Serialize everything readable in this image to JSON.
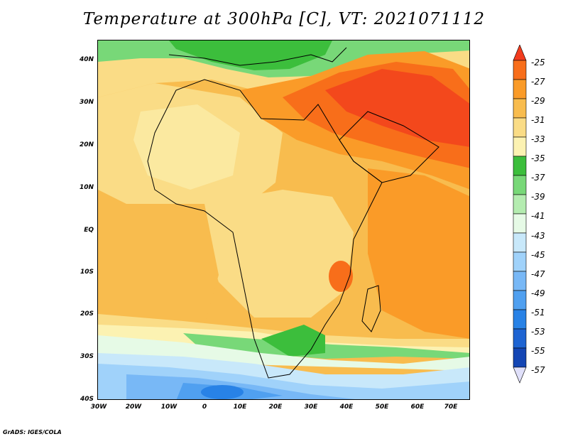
{
  "title": "Temperature at 300hPa [C], VT: 2021071112",
  "footer": "GrADS: IGES/COLA",
  "y_labels": [
    "40N",
    "30N",
    "20N",
    "10N",
    "EQ",
    "10S",
    "20S",
    "30S",
    "40S"
  ],
  "x_labels": [
    "30W",
    "20W",
    "10W",
    "0",
    "10E",
    "20E",
    "30E",
    "40E",
    "50E",
    "60E",
    "70E"
  ],
  "colorbar": {
    "labels": [
      "-25",
      "-27",
      "-29",
      "-31",
      "-33",
      "-35",
      "-37",
      "-39",
      "-41",
      "-43",
      "-45",
      "-47",
      "-49",
      "-51",
      "-53",
      "-55",
      "-57"
    ],
    "colors": [
      "#f23c1e",
      "#f86e1a",
      "#fa9b28",
      "#f8bc4e",
      "#fadc86",
      "#fcf2b2",
      "#3cbe3c",
      "#78d878",
      "#b4ecb0",
      "#e6fae6",
      "#c8e8fa",
      "#a0d2fa",
      "#78b8f6",
      "#50a0f0",
      "#2882e6",
      "#1e64d2",
      "#1446b4",
      "#0a1e78"
    ]
  }
}
